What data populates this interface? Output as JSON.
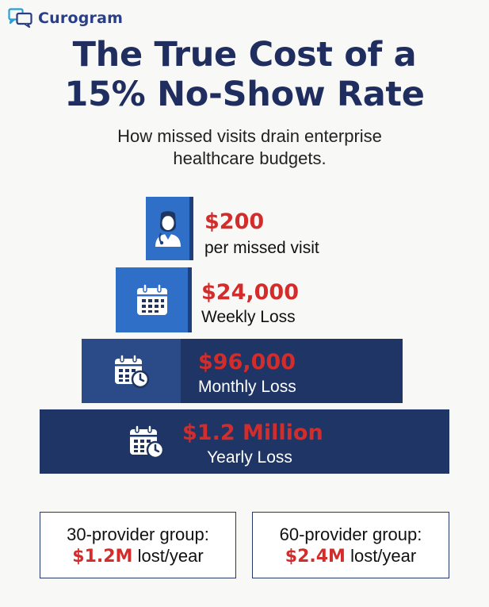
{
  "brand": {
    "name": "Curogram",
    "icon": "chat-bubbles-logo"
  },
  "title": {
    "line1": "The True Cost of a",
    "line2": "15% No-Show Rate"
  },
  "subtitle": {
    "line1": "How missed visits drain enterprise",
    "line2": "healthcare budgets."
  },
  "tiers": [
    {
      "amount": "$200",
      "label": "per missed visit",
      "icon": "doctor-icon"
    },
    {
      "amount": "$24,000",
      "label": "Weekly Loss",
      "icon": "calendar-icon"
    },
    {
      "amount": "$96,000",
      "label": "Monthly Loss",
      "icon": "calendar-clock-icon"
    },
    {
      "amount": "$1.2 Million",
      "label": "Yearly Loss",
      "icon": "calendar-clock-icon"
    }
  ],
  "cards": [
    {
      "line1": "30-provider group:",
      "amount": "$1.2M",
      "suffix": " lost/year"
    },
    {
      "line1": "60-provider group:",
      "amount": "$2.4M",
      "suffix": " lost/year"
    }
  ],
  "colors": {
    "accent_red": "#d32d2b",
    "navy": "#1e3566",
    "blue": "#2f6fc8",
    "title": "#1f2d5f",
    "brand": "#2a3f86"
  }
}
